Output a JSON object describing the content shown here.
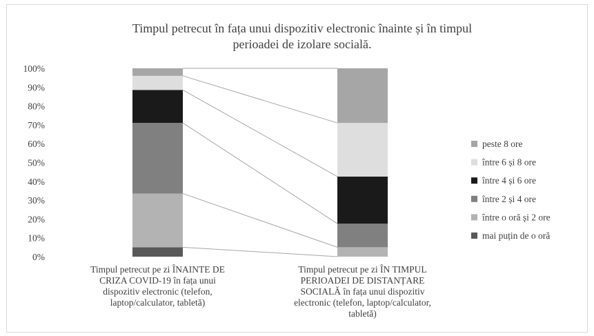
{
  "chart_data": {
    "type": "bar",
    "stacked": true,
    "percent": true,
    "title": "Timpul petrecut în fața unui dispozitiv electronic înainte și în timpul perioadei de izolare socială.",
    "title_lines": [
      "Timpul petrecut în fața unui dispozitiv electronic înainte și în timpul",
      "perioadei de izolare socială."
    ],
    "ylim": [
      0,
      100
    ],
    "y_ticks": [
      "0%",
      "10%",
      "20%",
      "30%",
      "40%",
      "50%",
      "60%",
      "70%",
      "80%",
      "90%",
      "100%"
    ],
    "categories": [
      "Timpul petrecut pe zi ÎNAINTE DE CRIZA COVID-19 în fața unui dispozitiv electronic (telefon, laptop/calculator, tabletă)",
      "Timpul petrecut pe zi ÎN TIMPUL PERIOADEI DE DISTANȚARE SOCIALĂ în fața unui dispozitiv electronic (telefon, laptop/calculator, tabletă)"
    ],
    "category_lines": [
      [
        "Timpul petrecut pe zi ÎNAINTE DE",
        "CRIZA COVID-19 în fața unui",
        "dispozitiv electronic (telefon,",
        "laptop/calculator, tabletă)"
      ],
      [
        "Timpul petrecut pe zi ÎN TIMPUL",
        "PERIOADEI DE DISTANȚARE",
        "SOCIALĂ în fața unui dispozitiv",
        "electronic (telefon, laptop/calculator,",
        "tabletă)"
      ]
    ],
    "series": [
      {
        "name": "mai puțin de o oră",
        "values": [
          5,
          0
        ],
        "color": "#595959"
      },
      {
        "name": "între o oră și 2 ore",
        "values": [
          28.5,
          5
        ],
        "color": "#b3b3b3"
      },
      {
        "name": "între 2 și 4 ore",
        "values": [
          37.5,
          12.5
        ],
        "color": "#808080"
      },
      {
        "name": "între 4 și 6 ore",
        "values": [
          17.5,
          25
        ],
        "color": "#1a1a1a"
      },
      {
        "name": "între 6 și 8 ore",
        "values": [
          7.5,
          28.5
        ],
        "color": "#dedede"
      },
      {
        "name": "peste 8 ore",
        "values": [
          4,
          29
        ],
        "color": "#a6a6a6"
      }
    ],
    "series_lines": true,
    "gridlines": false,
    "legend_position": "right"
  }
}
